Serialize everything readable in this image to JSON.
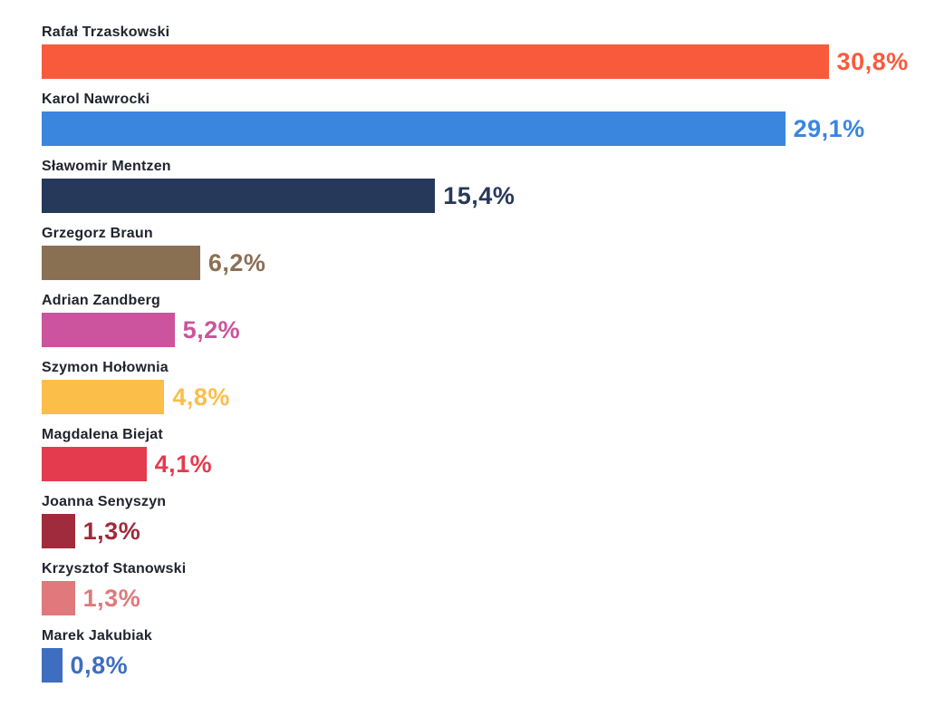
{
  "chart_data": {
    "type": "bar",
    "orientation": "horizontal",
    "title": "",
    "xlabel": "",
    "ylabel": "",
    "xlim": [
      0,
      32
    ],
    "grid": false,
    "legend": false,
    "background": "#FFFFFF",
    "category_label_color": "#20242E",
    "categories": [
      "Rafał Trzaskowski",
      "Karol Nawrocki",
      "Sławomir Mentzen",
      "Grzegorz Braun",
      "Adrian Zandberg",
      "Szymon Hołownia",
      "Magdalena Biejat",
      "Joanna Senyszyn",
      "Krzysztof Stanowski",
      "Marek Jakubiak"
    ],
    "values": [
      30.8,
      29.1,
      15.4,
      6.2,
      5.2,
      4.8,
      4.1,
      1.3,
      1.3,
      0.8
    ],
    "value_labels": [
      "30,8%",
      "29,1%",
      "15,4%",
      "6,2%",
      "5,2%",
      "4,8%",
      "4,1%",
      "1,3%",
      "1,3%",
      "0,8%"
    ],
    "bar_colors": [
      "#FA5A3C",
      "#3A86DF",
      "#27395A",
      "#8A7053",
      "#CC539D",
      "#FBBE49",
      "#E53B4F",
      "#A02B3C",
      "#DF797B",
      "#3E6EC0"
    ]
  }
}
